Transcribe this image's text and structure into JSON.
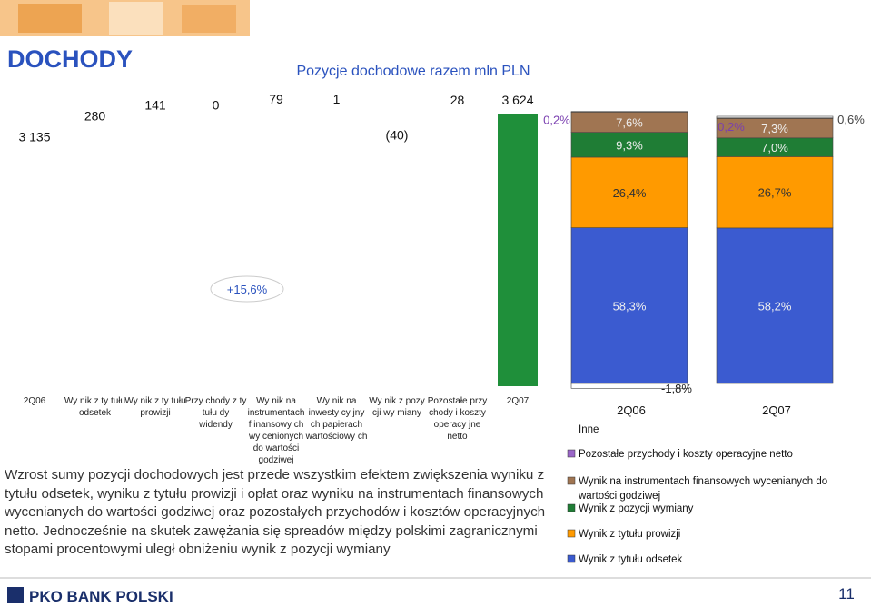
{
  "header": {
    "title": "DOCHODY"
  },
  "chart_data": [
    {
      "type": "waterfall",
      "title": "Pozycje dochodowe razem mln PLN",
      "categories": [
        "2Q06",
        "Wy nik z ty tułu odsetek",
        "Wy nik z ty tułu prowizji",
        "Przy chody z ty tułu dy widendy",
        "Wy nik na instrumentach f inansowy ch wy cenionych do wartości godziwej",
        "Wy nik na inwesty cy jny ch papierach wartościowy ch",
        "Wy nik z pozy cji wy miany",
        "Pozostałe przy chody i koszty operacy jne netto",
        "2Q07"
      ],
      "values": [
        3135,
        280,
        141,
        0,
        79,
        1,
        -40,
        28,
        3624
      ],
      "value_labels": [
        "3 135",
        "280",
        "141",
        "0",
        "79",
        "1",
        "(40)",
        "28",
        "3 624"
      ],
      "colors": [
        "#ffffff",
        "#ffffff",
        "#ffffff",
        "#ffffff",
        "#ffffff",
        "#ffffff",
        "#ffffff",
        "#ffffff",
        "#1f8f3a"
      ],
      "annotation": "+15,6%"
    },
    {
      "type": "stacked_bar",
      "categories": [
        "2Q06",
        "2Q07"
      ],
      "series": [
        {
          "name": "Wynik z tytułu odsetek",
          "color": "#3b5bd0",
          "values": [
            58.3,
            58.2
          ],
          "value_labels": [
            "58,3%",
            "58,2%"
          ]
        },
        {
          "name": "Wynik z tytułu prowizji",
          "color": "#ff9a00",
          "values": [
            26.4,
            26.7
          ],
          "value_labels": [
            "26,4%",
            "26,7%"
          ]
        },
        {
          "name": "Wynik z pozycji wymiany",
          "color": "#1f7d35",
          "values": [
            9.3,
            7.0
          ],
          "value_labels": [
            "9,3%",
            "7,0%"
          ]
        },
        {
          "name": "Wynik na instrumentach finansowych wycenianych do wartości godziwej",
          "color": "#a07552",
          "values": [
            7.6,
            7.3
          ],
          "value_labels": [
            "7,6%",
            "7,3%"
          ]
        },
        {
          "name": "Pozostałe przychody i koszty operacyjne netto",
          "color": "#9a66c8",
          "values": [
            0.2,
            0.2
          ],
          "value_labels": [
            "0,2%",
            "0,2%"
          ]
        },
        {
          "name": "Inne",
          "color": "#ffffff",
          "values": [
            -1.8,
            0.6
          ],
          "value_labels": [
            "-1,8%",
            "0,6%"
          ]
        }
      ]
    }
  ],
  "body": {
    "text": "Wzrost sumy pozycji dochodowych jest przede wszystkim efektem zwiększenia wyniku z tytułu odsetek, wyniku z tytułu prowizji i opłat oraz wyniku na instrumentach finansowych wycenianych do wartości godziwej oraz pozostałych przychodów i kosztów operacyjnych netto. Jednocześnie na skutek zawężania się spreadów między polskimi zagranicznymi stopami procentowymi uległ obniżeniu wynik z pozycji wymiany"
  },
  "footer": {
    "logo": "PKO BANK POLSKI",
    "page": "11"
  }
}
